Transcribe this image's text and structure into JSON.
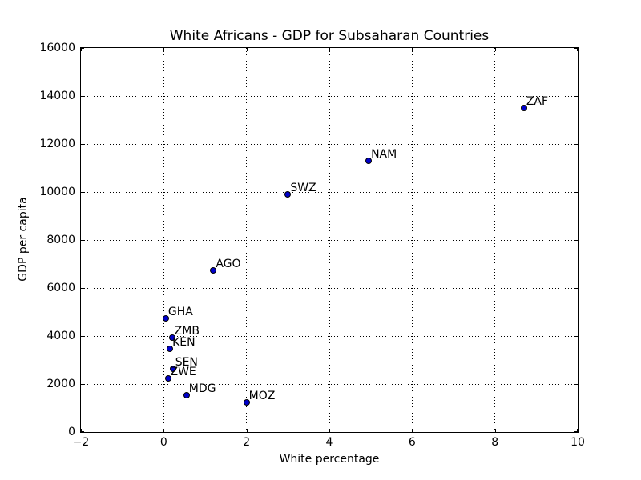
{
  "chart_data": {
    "type": "scatter",
    "title": "White Africans - GDP for Subsaharan Countries",
    "xlabel": "White percentage",
    "ylabel": "GDP per capita",
    "xlim": [
      -2,
      10
    ],
    "ylim": [
      0,
      16000
    ],
    "xticks": [
      -2,
      0,
      2,
      4,
      6,
      8,
      10
    ],
    "xtick_labels": [
      "−2",
      "0",
      "2",
      "4",
      "6",
      "8",
      "10"
    ],
    "yticks": [
      0,
      2000,
      4000,
      6000,
      8000,
      10000,
      12000,
      14000,
      16000
    ],
    "ytick_labels": [
      "0",
      "2000",
      "4000",
      "6000",
      "8000",
      "10000",
      "12000",
      "14000",
      "16000"
    ],
    "grid": true,
    "grid_style": "dotted",
    "legend": false,
    "colors": {
      "marker_fill": "#0000cc",
      "marker_edge": "#000000",
      "axis": "#000000",
      "grid": "#000000",
      "background": "#ffffff"
    },
    "points": [
      {
        "label": "ZAF",
        "x": 8.7,
        "y": 13500
      },
      {
        "label": "NAM",
        "x": 4.95,
        "y": 11300
      },
      {
        "label": "SWZ",
        "x": 3.0,
        "y": 9900
      },
      {
        "label": "AGO",
        "x": 1.2,
        "y": 6750
      },
      {
        "label": "GHA",
        "x": 0.05,
        "y": 4750
      },
      {
        "label": "ZMB",
        "x": 0.2,
        "y": 3950
      },
      {
        "label": "KEN",
        "x": 0.15,
        "y": 3470
      },
      {
        "label": "SEN",
        "x": 0.22,
        "y": 2630
      },
      {
        "label": "ZWE",
        "x": 0.1,
        "y": 2230
      },
      {
        "label": "MDG",
        "x": 0.55,
        "y": 1550
      },
      {
        "label": "MOZ",
        "x": 2.0,
        "y": 1220
      }
    ]
  }
}
